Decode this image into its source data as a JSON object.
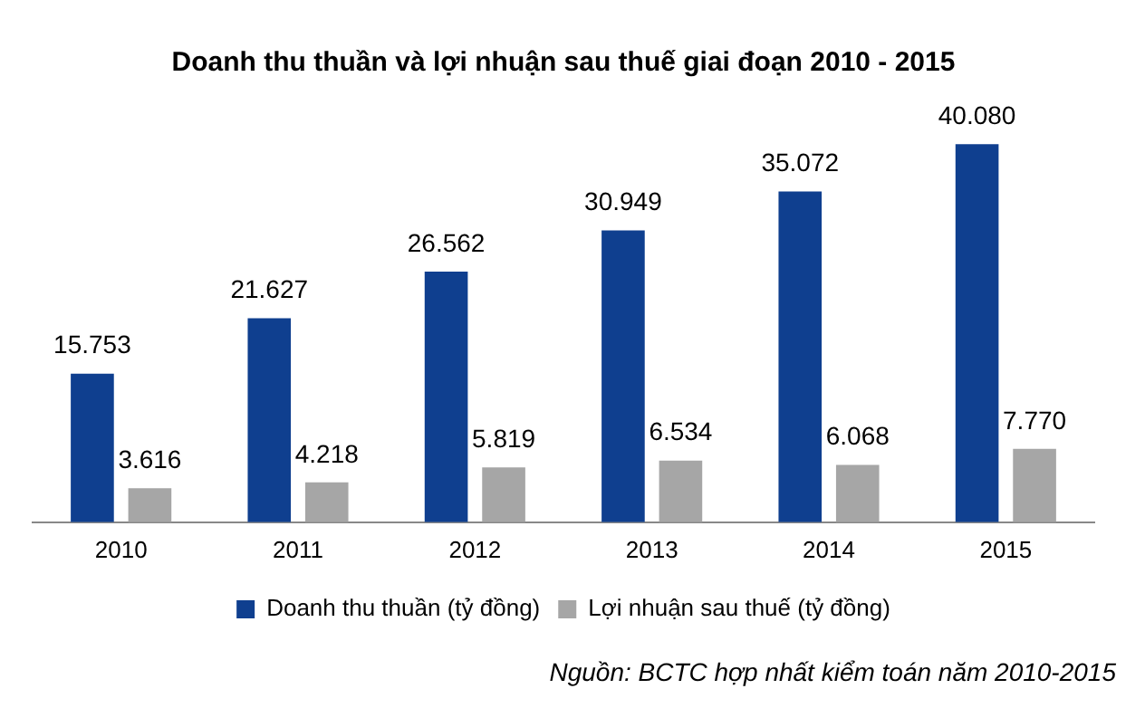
{
  "chart_data": {
    "type": "bar",
    "title": "Doanh thu thuần và lợi nhuận sau thuế giai đoạn 2010 - 2015",
    "categories": [
      "2010",
      "2011",
      "2012",
      "2013",
      "2014",
      "2015"
    ],
    "series": [
      {
        "name": "Doanh thu thuần (tỷ đồng)",
        "color": "#0f3f8f",
        "values": [
          15753,
          21627,
          26562,
          30949,
          35072,
          40080
        ],
        "value_labels": [
          "15.753",
          "21.627",
          "26.562",
          "30.949",
          "35.072",
          "40.080"
        ]
      },
      {
        "name": "Lợi nhuận sau thuế (tỷ đồng)",
        "color": "#a6a6a6",
        "values": [
          3616,
          4218,
          5819,
          6534,
          6068,
          7770
        ],
        "value_labels": [
          "3.616",
          "4.218",
          "5.819",
          "6.534",
          "6.068",
          "7.770"
        ]
      }
    ],
    "legend": "bottom",
    "grid": false,
    "tick_labels": "x",
    "annotations": [
      "Nguồn: BCTC hợp nhất kiểm toán năm 2010-2015"
    ]
  }
}
